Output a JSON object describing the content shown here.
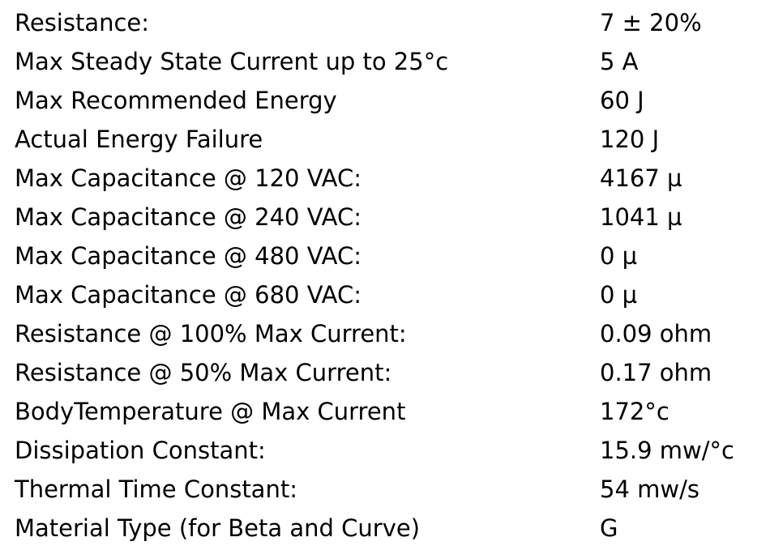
{
  "table": {
    "rows": [
      [
        "Resistance:",
        "7 ± 20%"
      ],
      [
        "Max Steady State Current up to 25°c",
        "5 A"
      ],
      [
        "Max Recommended Energy",
        "60 J"
      ],
      [
        "Actual Energy Failure",
        "120 J"
      ],
      [
        "Max Capacitance @ 120 VAC:",
        "4167 µ"
      ],
      [
        "Max Capacitance @ 240 VAC:",
        "1041 µ"
      ],
      [
        "Max Capacitance @ 480 VAC:",
        "0 µ"
      ],
      [
        "Max Capacitance @ 680 VAC:",
        "0 µ"
      ],
      [
        "Resistance @ 100% Max Current:",
        "0.09 ohm"
      ],
      [
        "Resistance @ 50% Max Current:",
        "0.17 ohm"
      ],
      [
        "BodyTemperature @ Max Current",
        "172°c"
      ],
      [
        "Dissipation Constant:",
        "15.9 mw/°c"
      ],
      [
        "Thermal Time Constant:",
        "54 mw/s"
      ],
      [
        "Material Type (for Beta and Curve)",
        "G"
      ]
    ]
  }
}
